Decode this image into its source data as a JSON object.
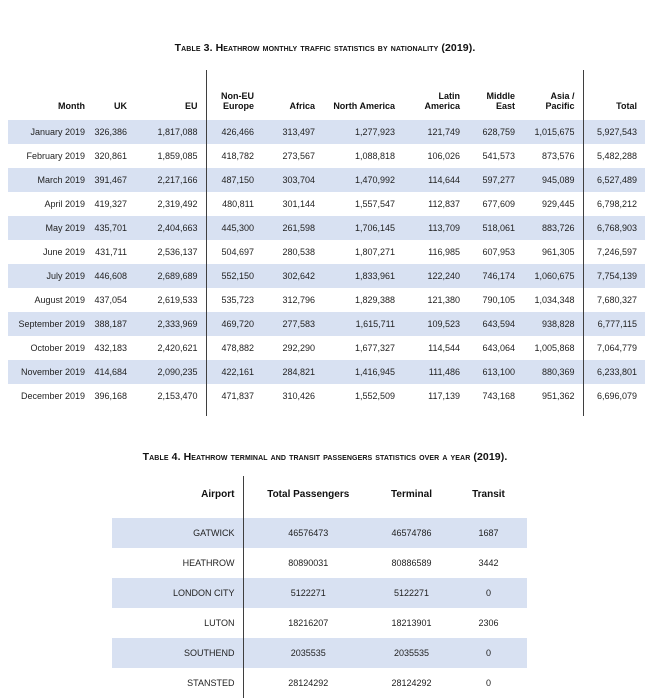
{
  "colors": {
    "row_shade": "#d8e1f2",
    "rule_line": "#3f3f3f",
    "text": "#1f1f1f"
  },
  "table3": {
    "title": "Table 3. Heathrow monthly traffic statistics by nationality (2019).",
    "columns": [
      "Month",
      "UK",
      "EU",
      "Non-EU Europe",
      "Africa",
      "North America",
      "Latin America",
      "Middle East",
      "Asia / Pacific",
      "Total"
    ],
    "rows": [
      [
        "January 2019",
        "326,386",
        "1,817,088",
        "426,466",
        "313,497",
        "1,277,923",
        "121,749",
        "628,759",
        "1,015,675",
        "5,927,543"
      ],
      [
        "February 2019",
        "320,861",
        "1,859,085",
        "418,782",
        "273,567",
        "1,088,818",
        "106,026",
        "541,573",
        "873,576",
        "5,482,288"
      ],
      [
        "March 2019",
        "391,467",
        "2,217,166",
        "487,150",
        "303,704",
        "1,470,992",
        "114,644",
        "597,277",
        "945,089",
        "6,527,489"
      ],
      [
        "April 2019",
        "419,327",
        "2,319,492",
        "480,811",
        "301,144",
        "1,557,547",
        "112,837",
        "677,609",
        "929,445",
        "6,798,212"
      ],
      [
        "May 2019",
        "435,701",
        "2,404,663",
        "445,300",
        "261,598",
        "1,706,145",
        "113,709",
        "518,061",
        "883,726",
        "6,768,903"
      ],
      [
        "June 2019",
        "431,711",
        "2,536,137",
        "504,697",
        "280,538",
        "1,807,271",
        "116,985",
        "607,953",
        "961,305",
        "7,246,597"
      ],
      [
        "July 2019",
        "446,608",
        "2,689,689",
        "552,150",
        "302,642",
        "1,833,961",
        "122,240",
        "746,174",
        "1,060,675",
        "7,754,139"
      ],
      [
        "August 2019",
        "437,054",
        "2,619,533",
        "535,723",
        "312,796",
        "1,829,388",
        "121,380",
        "790,105",
        "1,034,348",
        "7,680,327"
      ],
      [
        "September 2019",
        "388,187",
        "2,333,969",
        "469,720",
        "277,583",
        "1,615,711",
        "109,523",
        "643,594",
        "938,828",
        "6,777,115"
      ],
      [
        "October 2019",
        "432,183",
        "2,420,621",
        "478,882",
        "292,290",
        "1,677,327",
        "114,544",
        "643,064",
        "1,005,868",
        "7,064,779"
      ],
      [
        "November 2019",
        "414,684",
        "2,090,235",
        "422,161",
        "284,821",
        "1,416,945",
        "111,486",
        "613,100",
        "880,369",
        "6,233,801"
      ],
      [
        "December 2019",
        "396,168",
        "2,153,470",
        "471,837",
        "310,426",
        "1,552,509",
        "117,139",
        "743,168",
        "951,362",
        "6,696,079"
      ]
    ]
  },
  "table4": {
    "title": "Table 4. Heathrow terminal and transit passengers statistics over a year (2019).",
    "columns": [
      "Airport",
      "Total Passengers",
      "Terminal",
      "Transit"
    ],
    "rows": [
      [
        "GATWICK",
        "46576473",
        "46574786",
        "1687"
      ],
      [
        "HEATHROW",
        "80890031",
        "80886589",
        "3442"
      ],
      [
        "LONDON CITY",
        "5122271",
        "5122271",
        "0"
      ],
      [
        "LUTON",
        "18216207",
        "18213901",
        "2306"
      ],
      [
        "SOUTHEND",
        "2035535",
        "2035535",
        "0"
      ],
      [
        "STANSTED",
        "28124292",
        "28124292",
        "0"
      ]
    ]
  }
}
